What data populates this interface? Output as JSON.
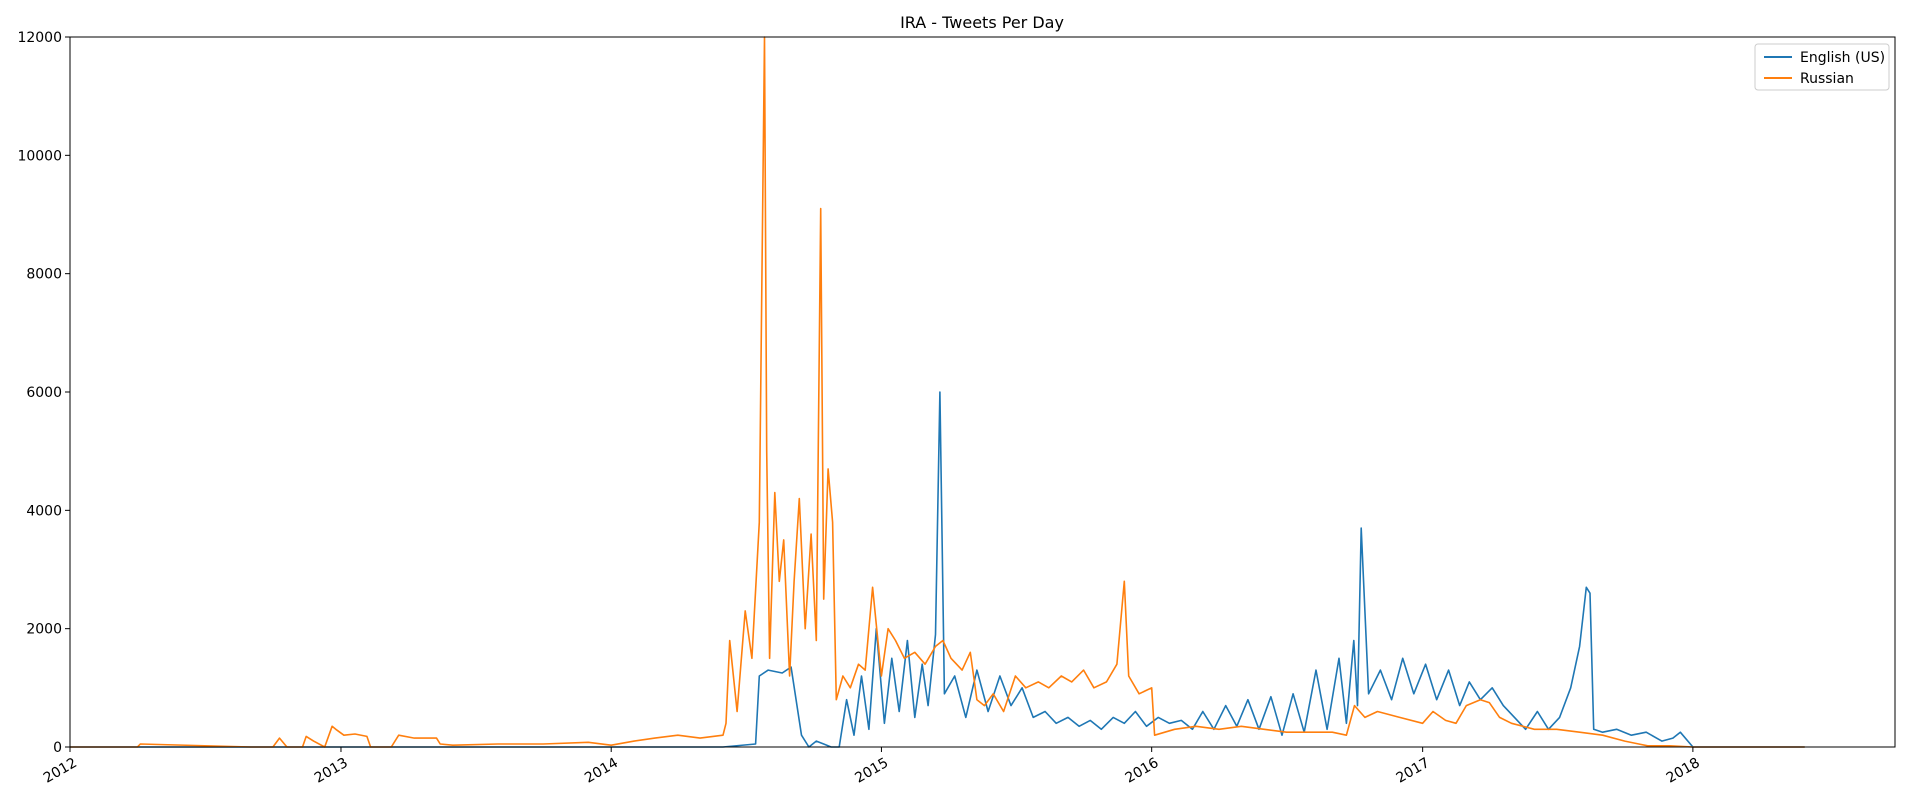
{
  "chart_data": {
    "type": "line",
    "title": "IRA - Tweets Per Day",
    "xlabel": "",
    "ylabel": "",
    "x_axis": "date",
    "xlim": [
      "2012-01-01",
      "2018-10-01"
    ],
    "ylim": [
      0,
      12000
    ],
    "grid": false,
    "legend_position": "top-right",
    "x_tick_labels": [
      "2012",
      "2013",
      "2014",
      "2015",
      "2016",
      "2017",
      "2018"
    ],
    "x_tick_dates": [
      "2012-01-01",
      "2013-01-01",
      "2014-01-01",
      "2015-01-01",
      "2016-01-01",
      "2017-01-01",
      "2018-01-01"
    ],
    "y_ticks": [
      0,
      2000,
      4000,
      6000,
      8000,
      10000,
      12000
    ],
    "y_tick_labels": [
      "0",
      "2000",
      "4000",
      "6000",
      "8000",
      "10000",
      "12000"
    ],
    "series": [
      {
        "name": "English (US)",
        "color": "#1f77b4",
        "x": [
          "2012-01-01",
          "2014-06-01",
          "2014-07-15",
          "2014-07-20",
          "2014-08-01",
          "2014-08-20",
          "2014-09-01",
          "2014-09-15",
          "2014-09-25",
          "2014-10-05",
          "2014-10-15",
          "2014-10-25",
          "2014-11-05",
          "2014-11-15",
          "2014-11-25",
          "2014-12-05",
          "2014-12-15",
          "2014-12-25",
          "2015-01-05",
          "2015-01-15",
          "2015-01-25",
          "2015-02-05",
          "2015-02-15",
          "2015-02-25",
          "2015-03-05",
          "2015-03-15",
          "2015-03-21",
          "2015-03-27",
          "2015-04-10",
          "2015-04-25",
          "2015-05-10",
          "2015-05-25",
          "2015-06-10",
          "2015-06-25",
          "2015-07-10",
          "2015-07-25",
          "2015-08-10",
          "2015-08-25",
          "2015-09-10",
          "2015-09-25",
          "2015-10-10",
          "2015-10-25",
          "2015-11-10",
          "2015-11-25",
          "2015-12-10",
          "2015-12-25",
          "2016-01-10",
          "2016-01-25",
          "2016-02-10",
          "2016-02-25",
          "2016-03-10",
          "2016-03-25",
          "2016-04-10",
          "2016-04-25",
          "2016-05-10",
          "2016-05-25",
          "2016-06-10",
          "2016-06-25",
          "2016-07-10",
          "2016-07-25",
          "2016-08-10",
          "2016-08-25",
          "2016-09-10",
          "2016-09-20",
          "2016-09-30",
          "2016-10-05",
          "2016-10-10",
          "2016-10-20",
          "2016-11-05",
          "2016-11-20",
          "2016-12-05",
          "2016-12-20",
          "2017-01-05",
          "2017-01-20",
          "2017-02-05",
          "2017-02-20",
          "2017-03-05",
          "2017-03-20",
          "2017-04-05",
          "2017-04-20",
          "2017-05-05",
          "2017-05-20",
          "2017-06-05",
          "2017-06-20",
          "2017-07-05",
          "2017-07-20",
          "2017-08-01",
          "2017-08-10",
          "2017-08-15",
          "2017-08-20",
          "2017-09-01",
          "2017-09-20",
          "2017-10-10",
          "2017-10-30",
          "2017-11-20",
          "2017-12-05",
          "2017-12-15",
          "2018-01-01",
          "2018-03-01",
          "2018-06-01"
        ],
        "values": [
          0,
          0,
          50,
          1200,
          1300,
          1250,
          1350,
          200,
          0,
          100,
          50,
          0,
          0,
          800,
          200,
          1200,
          300,
          2000,
          400,
          1500,
          600,
          1800,
          500,
          1400,
          700,
          1900,
          6000,
          900,
          1200,
          500,
          1300,
          600,
          1200,
          700,
          1000,
          500,
          600,
          400,
          500,
          350,
          450,
          300,
          500,
          400,
          600,
          350,
          500,
          400,
          450,
          300,
          600,
          300,
          700,
          350,
          800,
          300,
          850,
          200,
          900,
          250,
          1300,
          300,
          1500,
          400,
          1800,
          700,
          3700,
          900,
          1300,
          800,
          1500,
          900,
          1400,
          800,
          1300,
          700,
          1100,
          800,
          1000,
          700,
          500,
          300,
          600,
          300,
          500,
          1000,
          1700,
          2700,
          2600,
          300,
          250,
          300,
          200,
          250,
          100,
          150,
          250,
          0,
          0,
          0
        ]
      },
      {
        "name": "Russian",
        "color": "#ff7f0e",
        "x": [
          "2012-01-01",
          "2012-04-01",
          "2012-04-05",
          "2012-09-01",
          "2012-10-01",
          "2012-10-10",
          "2012-10-20",
          "2012-11-10",
          "2012-11-15",
          "2012-11-25",
          "2012-12-10",
          "2012-12-20",
          "2012-12-25",
          "2013-01-05",
          "2013-01-20",
          "2013-02-05",
          "2013-02-10",
          "2013-03-10",
          "2013-03-20",
          "2013-04-10",
          "2013-05-10",
          "2013-05-15",
          "2013-06-01",
          "2013-08-01",
          "2013-10-01",
          "2013-12-01",
          "2014-01-01",
          "2014-02-01",
          "2014-03-01",
          "2014-04-01",
          "2014-05-01",
          "2014-06-01",
          "2014-06-05",
          "2014-06-10",
          "2014-06-20",
          "2014-07-01",
          "2014-07-10",
          "2014-07-20",
          "2014-07-27",
          "2014-07-30",
          "2014-08-03",
          "2014-08-10",
          "2014-08-16",
          "2014-08-22",
          "2014-08-30",
          "2014-09-05",
          "2014-09-12",
          "2014-09-20",
          "2014-09-28",
          "2014-10-05",
          "2014-10-11",
          "2014-10-15",
          "2014-10-21",
          "2014-10-27",
          "2014-11-01",
          "2014-11-10",
          "2014-11-20",
          "2014-12-01",
          "2014-12-10",
          "2014-12-20",
          "2015-01-01",
          "2015-01-10",
          "2015-01-20",
          "2015-02-01",
          "2015-02-15",
          "2015-03-01",
          "2015-03-15",
          "2015-03-25",
          "2015-04-05",
          "2015-04-20",
          "2015-05-01",
          "2015-05-10",
          "2015-05-20",
          "2015-06-01",
          "2015-06-15",
          "2015-07-01",
          "2015-07-15",
          "2015-08-01",
          "2015-08-15",
          "2015-09-01",
          "2015-09-15",
          "2015-10-01",
          "2015-10-15",
          "2015-11-01",
          "2015-11-15",
          "2015-11-25",
          "2015-12-01",
          "2015-12-15",
          "2016-01-01",
          "2016-01-05",
          "2016-02-01",
          "2016-03-01",
          "2016-04-01",
          "2016-05-01",
          "2016-06-01",
          "2016-07-01",
          "2016-08-01",
          "2016-09-01",
          "2016-09-20",
          "2016-10-01",
          "2016-10-15",
          "2016-11-01",
          "2016-12-01",
          "2017-01-01",
          "2017-01-15",
          "2017-02-01",
          "2017-02-15",
          "2017-03-01",
          "2017-03-20",
          "2017-04-01",
          "2017-04-15",
          "2017-05-01",
          "2017-06-01",
          "2017-07-01",
          "2017-08-01",
          "2017-09-01",
          "2017-10-01",
          "2017-10-20",
          "2017-11-01",
          "2017-12-01",
          "2018-01-01",
          "2018-03-01",
          "2018-06-01"
        ],
        "values": [
          0,
          0,
          50,
          0,
          0,
          150,
          0,
          0,
          180,
          100,
          0,
          350,
          300,
          200,
          220,
          180,
          0,
          0,
          200,
          150,
          150,
          50,
          30,
          50,
          50,
          80,
          30,
          100,
          150,
          200,
          150,
          200,
          400,
          1800,
          600,
          2300,
          1500,
          3800,
          12000,
          5000,
          1500,
          4300,
          2800,
          3500,
          1200,
          2800,
          4200,
          2000,
          3600,
          1800,
          9100,
          2500,
          4700,
          3800,
          800,
          1200,
          1000,
          1400,
          1300,
          2700,
          1200,
          2000,
          1800,
          1500,
          1600,
          1400,
          1700,
          1800,
          1500,
          1300,
          1600,
          800,
          700,
          900,
          600,
          1200,
          1000,
          1100,
          1000,
          1200,
          1100,
          1300,
          1000,
          1100,
          1400,
          2800,
          1200,
          900,
          1000,
          200,
          300,
          350,
          300,
          350,
          300,
          250,
          250,
          250,
          200,
          700,
          500,
          600,
          500,
          400,
          600,
          450,
          400,
          700,
          800,
          750,
          500,
          400,
          300,
          300,
          250,
          200,
          100,
          50,
          20,
          20,
          0,
          0,
          0
        ]
      }
    ]
  }
}
